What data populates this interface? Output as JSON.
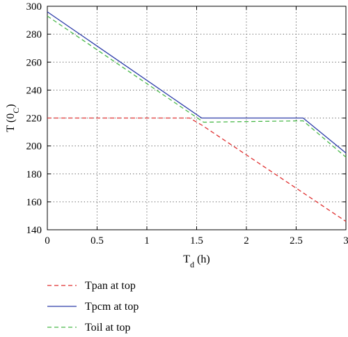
{
  "chart_data": {
    "type": "line",
    "xlabel": {
      "main": "T",
      "sub": "d",
      "rest": " (h)"
    },
    "ylabel": {
      "main": "T (0",
      "sub": "C",
      "rest": ")"
    },
    "xlim": [
      0,
      3
    ],
    "ylim": [
      140,
      300
    ],
    "xticks": [
      0,
      0.5,
      1,
      1.5,
      2,
      2.5,
      3
    ],
    "xtick_labels": [
      "0",
      "0.5",
      "1",
      "1.5",
      "2",
      "2.5",
      "3"
    ],
    "yticks": [
      140,
      160,
      180,
      200,
      220,
      240,
      260,
      280,
      300
    ],
    "ytick_labels": [
      "140",
      "160",
      "180",
      "200",
      "220",
      "240",
      "260",
      "280",
      "300"
    ],
    "grid": true,
    "legend_placement": "below-left",
    "series": [
      {
        "name": "Tpan at top",
        "color": "#e03030",
        "dash": "dashed",
        "points": [
          [
            0,
            220
          ],
          [
            1.43,
            220
          ],
          [
            1.55,
            215
          ],
          [
            3,
            146
          ]
        ]
      },
      {
        "name": "Tpcm at top",
        "color": "#2a3aa8",
        "dash": "solid",
        "points": [
          [
            0,
            296
          ],
          [
            1.55,
            220
          ],
          [
            2.57,
            220
          ],
          [
            3,
            195
          ]
        ]
      },
      {
        "name": "Toil at top",
        "color": "#48b848",
        "dash": "dashed",
        "points": [
          [
            0,
            293
          ],
          [
            1.57,
            217
          ],
          [
            2.57,
            218
          ],
          [
            3,
            192
          ]
        ]
      }
    ]
  }
}
